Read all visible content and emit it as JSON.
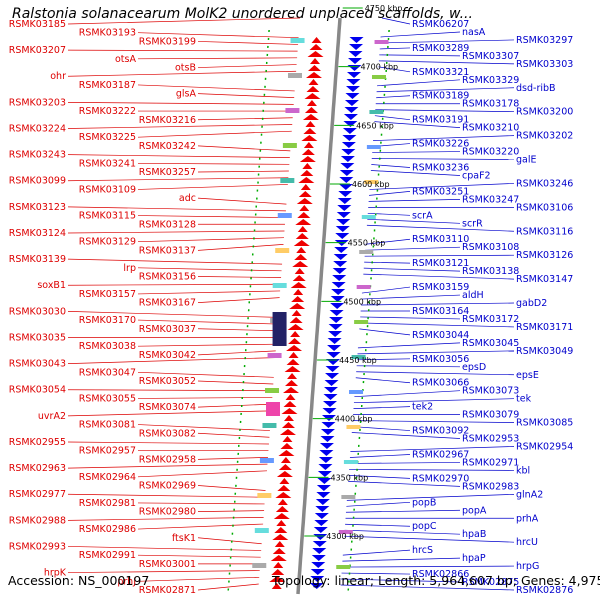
{
  "title": "Ralstonia solanacearum MolK2 unordered unplaced scaffolds, w...",
  "footer": {
    "accession_text": "Accession: NS_000197",
    "summary_text": "Topology: linear; Length: 5,964,607 bp; Genes: 4,975"
  },
  "colors": {
    "left_label": "#dd0000",
    "left_feature": "#ee0000",
    "right_label": "#0000cc",
    "right_feature": "#0000ee",
    "backbone": "#888888",
    "tick_green": "#00aa00",
    "scale_text": "#000000"
  },
  "scale_ticks": [
    "4750 kbp",
    "4700 kbp",
    "4650 kbp",
    "4600 kbp",
    "4550 kbp",
    "4500 kbp",
    "4450 kbp",
    "4400 kbp",
    "4350 kbp",
    "4300 kbp"
  ],
  "left_labels": [
    "RSMK03185",
    "RSMK03193",
    "RSMK03199",
    "RSMK03207",
    "otsA",
    "otsB",
    "ohr",
    "RSMK03187",
    "glsA",
    "RSMK03203",
    "RSMK03222",
    "RSMK03216",
    "RSMK03224",
    "RSMK03225",
    "RSMK03242",
    "RSMK03243",
    "RSMK03241",
    "RSMK03257",
    "RSMK03099",
    "RSMK03109",
    "adc",
    "RSMK03123",
    "RSMK03115",
    "RSMK03128",
    "RSMK03124",
    "RSMK03129",
    "RSMK03137",
    "RSMK03139",
    "lrp",
    "RSMK03156",
    "soxB1",
    "RSMK03157",
    "RSMK03167",
    "RSMK03030",
    "RSMK03170",
    "RSMK03037",
    "RSMK03035",
    "RSMK03038",
    "RSMK03042",
    "RSMK03043",
    "RSMK03047",
    "RSMK03052",
    "RSMK03054",
    "RSMK03055",
    "RSMK03074",
    "uvrA2",
    "RSMK03081",
    "RSMK03082",
    "RSMK02955",
    "RSMK02957",
    "RSMK02958",
    "RSMK02963",
    "RSMK02964",
    "RSMK02969",
    "RSMK02977",
    "RSMK02981",
    "RSMK02980",
    "RSMK02988",
    "RSMK02986",
    "ftsK1",
    "RSMK02993",
    "RSMK02991",
    "RSMK03001",
    "hrpK",
    "prhJ",
    "RSMK02871"
  ],
  "right_labels": [
    "RSMK06207",
    "nasA",
    "RSMK03297",
    "RSMK03289",
    "RSMK03307",
    "RSMK03303",
    "RSMK03321",
    "RSMK03329",
    "dsd-ribB",
    "RSMK03189",
    "RSMK03178",
    "RSMK03200",
    "RSMK03191",
    "RSMK03210",
    "RSMK03202",
    "RSMK03226",
    "RSMK03220",
    "galE",
    "RSMK03236",
    "cpaF2",
    "RSMK03246",
    "RSMK03251",
    "RSMK03247",
    "RSMK03106",
    "scrA",
    "scrR",
    "RSMK03116",
    "RSMK03110",
    "RSMK03108",
    "RSMK03126",
    "RSMK03121",
    "RSMK03138",
    "RSMK03147",
    "RSMK03159",
    "aldH",
    "gabD2",
    "RSMK03164",
    "RSMK03172",
    "RSMK03171",
    "RSMK03044",
    "RSMK03045",
    "RSMK03049",
    "RSMK03056",
    "epsD",
    "epsE",
    "RSMK03066",
    "RSMK03073",
    "tek",
    "tek2",
    "RSMK03079",
    "RSMK03085",
    "RSMK03092",
    "RSMK02953",
    "RSMK02954",
    "RSMK02967",
    "RSMK02971",
    "kbl",
    "RSMK02970",
    "RSMK02983",
    "glnA2",
    "popB",
    "popA",
    "prhA",
    "popC",
    "hpaB",
    "hrcU",
    "hrcS",
    "hpaP",
    "hrpG",
    "RSMK02866",
    "RSMK02875",
    "RSMK02876"
  ]
}
